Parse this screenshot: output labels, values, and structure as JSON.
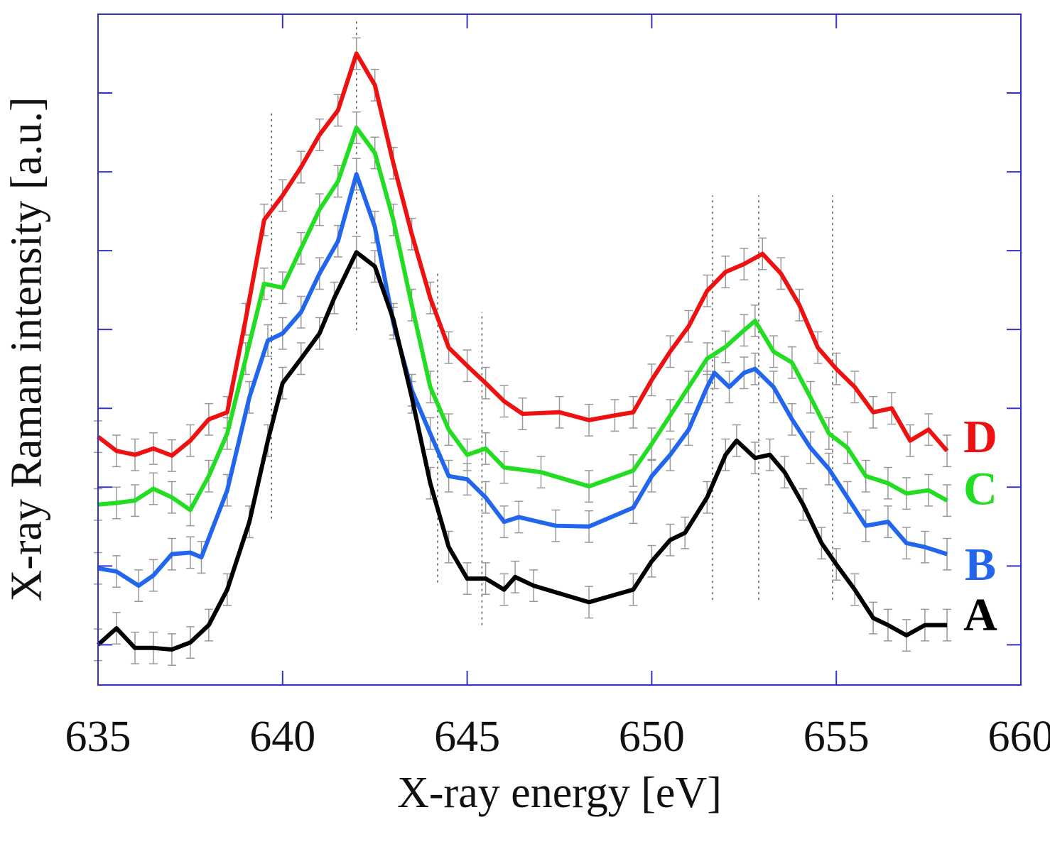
{
  "chart_data": {
    "type": "line",
    "xlabel": "X-ray energy [eV]",
    "ylabel": "X-ray Raman intensity [a.u.]",
    "xlim": [
      635,
      660
    ],
    "ylim": [
      0.49,
      9.0
    ],
    "xticks": [
      635,
      640,
      645,
      650,
      655,
      660
    ],
    "yticks": [
      1,
      2,
      3,
      4,
      5,
      6,
      7,
      8
    ],
    "yticklabels_shown": false,
    "grid": false,
    "frame_color": "#3333cc",
    "error_bar_halfwidth": 0.2,
    "error_bar_color": "#999999",
    "reference_lines": [
      {
        "x": 639.7,
        "y": [
          2.6,
          7.78
        ]
      },
      {
        "x": 642.0,
        "y": [
          4.99,
          8.95
        ]
      },
      {
        "x": 644.2,
        "y": [
          1.79,
          5.71
        ]
      },
      {
        "x": 645.4,
        "y": [
          1.25,
          5.22
        ]
      },
      {
        "x": 651.65,
        "y": [
          1.57,
          6.7
        ]
      },
      {
        "x": 652.9,
        "y": [
          1.57,
          6.7
        ]
      },
      {
        "x": 654.9,
        "y": [
          1.57,
          6.7
        ]
      }
    ],
    "series": [
      {
        "name": "D",
        "color": "#ee1111",
        "label_y": 3.64,
        "points": [
          [
            635,
            3.64
          ],
          [
            635.5,
            3.46
          ],
          [
            636,
            3.41
          ],
          [
            636.5,
            3.49
          ],
          [
            637,
            3.4
          ],
          [
            637.5,
            3.59
          ],
          [
            638,
            3.86
          ],
          [
            638.5,
            3.95
          ],
          [
            639,
            5.13
          ],
          [
            639.5,
            6.39
          ],
          [
            640,
            6.7
          ],
          [
            640.5,
            7.06
          ],
          [
            641,
            7.47
          ],
          [
            641.5,
            7.78
          ],
          [
            642,
            8.5
          ],
          [
            642.5,
            8.1
          ],
          [
            643,
            7.11
          ],
          [
            643.5,
            6.21
          ],
          [
            644,
            5.4
          ],
          [
            644.5,
            4.77
          ],
          [
            645,
            4.54
          ],
          [
            645.5,
            4.32
          ],
          [
            646,
            4.09
          ],
          [
            646.5,
            3.93
          ],
          [
            647.5,
            3.95
          ],
          [
            648.3,
            3.85
          ],
          [
            649,
            3.91
          ],
          [
            649.5,
            3.95
          ],
          [
            650,
            4.36
          ],
          [
            650.5,
            4.72
          ],
          [
            651,
            5.04
          ],
          [
            651.5,
            5.49
          ],
          [
            652,
            5.73
          ],
          [
            652.5,
            5.83
          ],
          [
            653,
            5.96
          ],
          [
            653.5,
            5.71
          ],
          [
            654,
            5.31
          ],
          [
            654.5,
            4.77
          ],
          [
            655,
            4.5
          ],
          [
            655.5,
            4.27
          ],
          [
            656,
            3.95
          ],
          [
            656.5,
            4.0
          ],
          [
            657,
            3.59
          ],
          [
            657.5,
            3.73
          ],
          [
            658,
            3.46
          ]
        ]
      },
      {
        "name": "C",
        "color": "#22dd22",
        "label_y": 2.98,
        "points": [
          [
            635,
            2.78
          ],
          [
            635.5,
            2.8
          ],
          [
            636,
            2.83
          ],
          [
            636.5,
            2.98
          ],
          [
            637,
            2.87
          ],
          [
            637.5,
            2.71
          ],
          [
            638,
            3.14
          ],
          [
            638.5,
            3.68
          ],
          [
            639,
            4.63
          ],
          [
            639.5,
            5.58
          ],
          [
            640,
            5.53
          ],
          [
            640.5,
            6.03
          ],
          [
            641,
            6.52
          ],
          [
            641.5,
            6.88
          ],
          [
            642,
            7.56
          ],
          [
            642.5,
            7.24
          ],
          [
            643,
            6.39
          ],
          [
            643.5,
            5.31
          ],
          [
            644,
            4.27
          ],
          [
            644.5,
            3.73
          ],
          [
            645,
            3.41
          ],
          [
            645.5,
            3.49
          ],
          [
            646,
            3.25
          ],
          [
            647,
            3.19
          ],
          [
            648.3,
            3.01
          ],
          [
            649.5,
            3.21
          ],
          [
            650,
            3.55
          ],
          [
            650.5,
            3.91
          ],
          [
            651,
            4.27
          ],
          [
            651.5,
            4.63
          ],
          [
            652,
            4.78
          ],
          [
            652.5,
            4.99
          ],
          [
            652.8,
            5.11
          ],
          [
            653.3,
            4.72
          ],
          [
            653.8,
            4.58
          ],
          [
            654.3,
            4.14
          ],
          [
            654.8,
            3.68
          ],
          [
            655.3,
            3.5
          ],
          [
            655.8,
            3.14
          ],
          [
            656.4,
            3.05
          ],
          [
            656.9,
            2.92
          ],
          [
            657.5,
            2.96
          ],
          [
            658,
            2.83
          ]
        ]
      },
      {
        "name": "B",
        "color": "#2266ee",
        "label_y": 2.02,
        "points": [
          [
            635,
            1.97
          ],
          [
            635.5,
            1.93
          ],
          [
            636.1,
            1.75
          ],
          [
            636.5,
            1.88
          ],
          [
            637,
            2.15
          ],
          [
            637.5,
            2.17
          ],
          [
            637.8,
            2.11
          ],
          [
            638.5,
            2.96
          ],
          [
            639.1,
            4.14
          ],
          [
            639.6,
            4.86
          ],
          [
            640,
            4.95
          ],
          [
            640.5,
            5.22
          ],
          [
            641,
            5.71
          ],
          [
            641.5,
            6.12
          ],
          [
            642,
            6.97
          ],
          [
            642.5,
            6.3
          ],
          [
            643,
            5.08
          ],
          [
            643.5,
            4.23
          ],
          [
            644,
            3.68
          ],
          [
            644.5,
            3.14
          ],
          [
            645,
            3.1
          ],
          [
            645.5,
            2.87
          ],
          [
            646,
            2.56
          ],
          [
            646.4,
            2.62
          ],
          [
            647.4,
            2.51
          ],
          [
            648.3,
            2.5
          ],
          [
            649.5,
            2.74
          ],
          [
            650,
            3.14
          ],
          [
            650.5,
            3.41
          ],
          [
            651,
            3.73
          ],
          [
            651.5,
            4.27
          ],
          [
            651.7,
            4.45
          ],
          [
            652.1,
            4.27
          ],
          [
            652.5,
            4.45
          ],
          [
            652.8,
            4.5
          ],
          [
            653.3,
            4.27
          ],
          [
            653.8,
            3.86
          ],
          [
            654.3,
            3.5
          ],
          [
            654.8,
            3.23
          ],
          [
            655.3,
            2.87
          ],
          [
            655.8,
            2.51
          ],
          [
            656.4,
            2.56
          ],
          [
            656.9,
            2.29
          ],
          [
            657.4,
            2.24
          ],
          [
            658,
            2.15
          ]
        ]
      },
      {
        "name": "A",
        "color": "#000000",
        "label_y": 1.38,
        "points": [
          [
            635,
            1.0
          ],
          [
            635.5,
            1.21
          ],
          [
            636,
            0.96
          ],
          [
            636.5,
            0.96
          ],
          [
            637,
            0.94
          ],
          [
            637.5,
            1.03
          ],
          [
            638,
            1.25
          ],
          [
            638.5,
            1.7
          ],
          [
            639.1,
            2.56
          ],
          [
            639.6,
            3.59
          ],
          [
            640,
            4.32
          ],
          [
            640.5,
            4.63
          ],
          [
            641,
            4.95
          ],
          [
            641.4,
            5.4
          ],
          [
            642,
            5.98
          ],
          [
            642.5,
            5.8
          ],
          [
            643,
            5.13
          ],
          [
            643.5,
            4.14
          ],
          [
            644,
            3.05
          ],
          [
            644.5,
            2.24
          ],
          [
            645,
            1.84
          ],
          [
            645.5,
            1.84
          ],
          [
            646,
            1.7
          ],
          [
            646.3,
            1.86
          ],
          [
            646.8,
            1.75
          ],
          [
            648.3,
            1.54
          ],
          [
            649.5,
            1.7
          ],
          [
            650,
            2.06
          ],
          [
            650.5,
            2.33
          ],
          [
            650.9,
            2.42
          ],
          [
            651.5,
            2.87
          ],
          [
            652,
            3.41
          ],
          [
            652.3,
            3.59
          ],
          [
            652.8,
            3.37
          ],
          [
            653.2,
            3.41
          ],
          [
            653.6,
            3.19
          ],
          [
            654.1,
            2.78
          ],
          [
            654.6,
            2.29
          ],
          [
            655,
            2.02
          ],
          [
            655.5,
            1.7
          ],
          [
            656,
            1.34
          ],
          [
            656.4,
            1.25
          ],
          [
            656.9,
            1.12
          ],
          [
            657.4,
            1.25
          ],
          [
            658,
            1.25
          ]
        ]
      }
    ]
  }
}
